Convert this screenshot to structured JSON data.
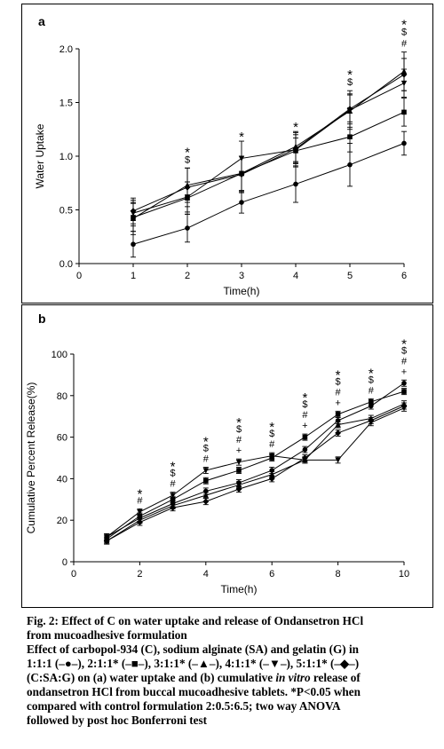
{
  "chart_data": [
    {
      "type": "line",
      "panel_label": "a",
      "xlabel": "Time(h)",
      "ylabel": "Water Uptake",
      "xlim": [
        0,
        6
      ],
      "ylim": [
        0,
        2.0
      ],
      "xticks": [
        "0",
        "1",
        "2",
        "3",
        "4",
        "5",
        "6"
      ],
      "yticks": [
        "0.0",
        "0.5",
        "1.0",
        "1.5",
        "2.0"
      ],
      "x": [
        1,
        2,
        3,
        4,
        5,
        6
      ],
      "series": [
        {
          "marker": "circle",
          "values": [
            0.18,
            0.33,
            0.57,
            0.74,
            0.92,
            1.12
          ],
          "errors": [
            0.12,
            0.13,
            0.1,
            0.17,
            0.2,
            0.11
          ]
        },
        {
          "marker": "square",
          "values": [
            0.43,
            0.61,
            0.84,
            1.05,
            1.18,
            1.41
          ],
          "errors": [
            0.13,
            0.15,
            0.16,
            0.12,
            0.14,
            0.13
          ]
        },
        {
          "marker": "triangle-up",
          "values": [
            0.42,
            0.73,
            0.84,
            1.09,
            1.42,
            1.79
          ],
          "errors": [
            0.15,
            0.16,
            0.16,
            0.14,
            0.15,
            0.18
          ]
        },
        {
          "marker": "triangle-down",
          "values": [
            0.47,
            0.62,
            0.98,
            1.06,
            1.43,
            1.68
          ],
          "errors": [
            0.12,
            0.14,
            0.16,
            0.16,
            0.18,
            0.13
          ]
        },
        {
          "marker": "diamond",
          "values": [
            0.49,
            0.71,
            0.83,
            1.07,
            1.44,
            1.76
          ],
          "errors": [
            0.12,
            0.18,
            0.17,
            0.13,
            0.14,
            0.15
          ]
        }
      ],
      "annotations": [
        {
          "x": 2,
          "lines": [
            "*",
            "$"
          ]
        },
        {
          "x": 3,
          "lines": [
            "*"
          ]
        },
        {
          "x": 4,
          "lines": [
            "*"
          ]
        },
        {
          "x": 5,
          "lines": [
            "*",
            "$"
          ]
        },
        {
          "x": 6,
          "lines": [
            "*",
            "$",
            "#"
          ]
        }
      ]
    },
    {
      "type": "line",
      "panel_label": "b",
      "xlabel": "Time(h)",
      "ylabel": "Cumulative Percent Release(%)",
      "xlim": [
        0,
        10
      ],
      "ylim": [
        0,
        100
      ],
      "xticks": [
        "0",
        "2",
        "4",
        "6",
        "8",
        "10"
      ],
      "yticks": [
        "0",
        "20",
        "40",
        "60",
        "80",
        "100"
      ],
      "x": [
        1,
        2,
        3,
        4,
        5,
        6,
        7,
        8,
        9,
        10
      ],
      "series": [
        {
          "marker": "circle",
          "values": [
            12,
            21,
            28,
            34,
            38,
            44,
            54,
            68,
            75,
            86
          ],
          "errors": [
            1.5,
            1.5,
            1.5,
            1.5,
            1.5,
            1.5,
            1.5,
            1.5,
            1.5,
            1.5
          ]
        },
        {
          "marker": "square",
          "values": [
            11,
            22,
            30,
            39,
            44,
            50,
            60,
            71,
            77,
            82
          ],
          "errors": [
            1.5,
            1.5,
            1.5,
            1.5,
            1.5,
            1.5,
            1.5,
            1.5,
            1.5,
            1.5
          ]
        },
        {
          "marker": "triangle-up",
          "values": [
            10,
            20,
            27,
            32,
            37,
            42,
            49,
            66,
            69,
            76
          ],
          "errors": [
            1.5,
            1.5,
            1.5,
            1.5,
            1.5,
            1.5,
            1.5,
            1.5,
            1.5,
            1.5
          ]
        },
        {
          "marker": "triangle-down",
          "values": [
            12,
            24,
            32,
            44,
            48,
            51,
            49,
            49,
            67,
            74
          ],
          "errors": [
            1.5,
            1.5,
            1.5,
            1.5,
            1.5,
            1.5,
            1.5,
            1.5,
            1.5,
            1.5
          ]
        },
        {
          "marker": "diamond",
          "values": [
            10,
            19,
            26,
            29,
            35,
            40,
            50,
            62,
            68,
            75
          ],
          "errors": [
            1.5,
            1.5,
            1.5,
            1.5,
            1.5,
            1.5,
            1.5,
            1.5,
            1.5,
            1.5
          ]
        }
      ],
      "annotations": [
        {
          "x": 2,
          "lines": [
            "*",
            "#"
          ]
        },
        {
          "x": 3,
          "lines": [
            "*",
            "$",
            "#"
          ]
        },
        {
          "x": 4,
          "lines": [
            "*",
            "$",
            "#"
          ]
        },
        {
          "x": 5,
          "lines": [
            "*",
            "$",
            "#",
            "+"
          ]
        },
        {
          "x": 6,
          "lines": [
            "*",
            "$",
            "#"
          ]
        },
        {
          "x": 7,
          "lines": [
            "*",
            "$",
            "#",
            "+"
          ]
        },
        {
          "x": 8,
          "lines": [
            "*",
            "$",
            "#",
            "+"
          ]
        },
        {
          "x": 9,
          "lines": [
            "*",
            "$",
            "#"
          ]
        },
        {
          "x": 10,
          "lines": [
            "*",
            "$",
            "#",
            "+"
          ]
        }
      ]
    }
  ],
  "caption": {
    "title_line1": "Fig. 2: Effect of C on water uptake and release of Ondansetron HCl",
    "title_line2": "from mucoadhesive formulation",
    "body_line1": "Effect of carbopol-934 (C), sodium alginate (SA) and gelatin (G) in",
    "body_line2": "1:1:1 (–●–), 2:1:1* (–■–), 3:1:1* (–▲–), 4:1:1* (–▼–), 5:1:1* (–◆–)",
    "body_line3_pre": "(C:SA:G) on (a) water uptake and (b) cumulative ",
    "body_line3_italic": "in vitro",
    "body_line3_post": " release of",
    "body_line4": "ondansetron HCl from buccal mucoadhesive tablets. *P<0.05 when",
    "body_line5": "compared with control formulation 2:0.5:6.5; two way ANOVA",
    "body_line6": "followed by post hoc Bonferroni test"
  }
}
